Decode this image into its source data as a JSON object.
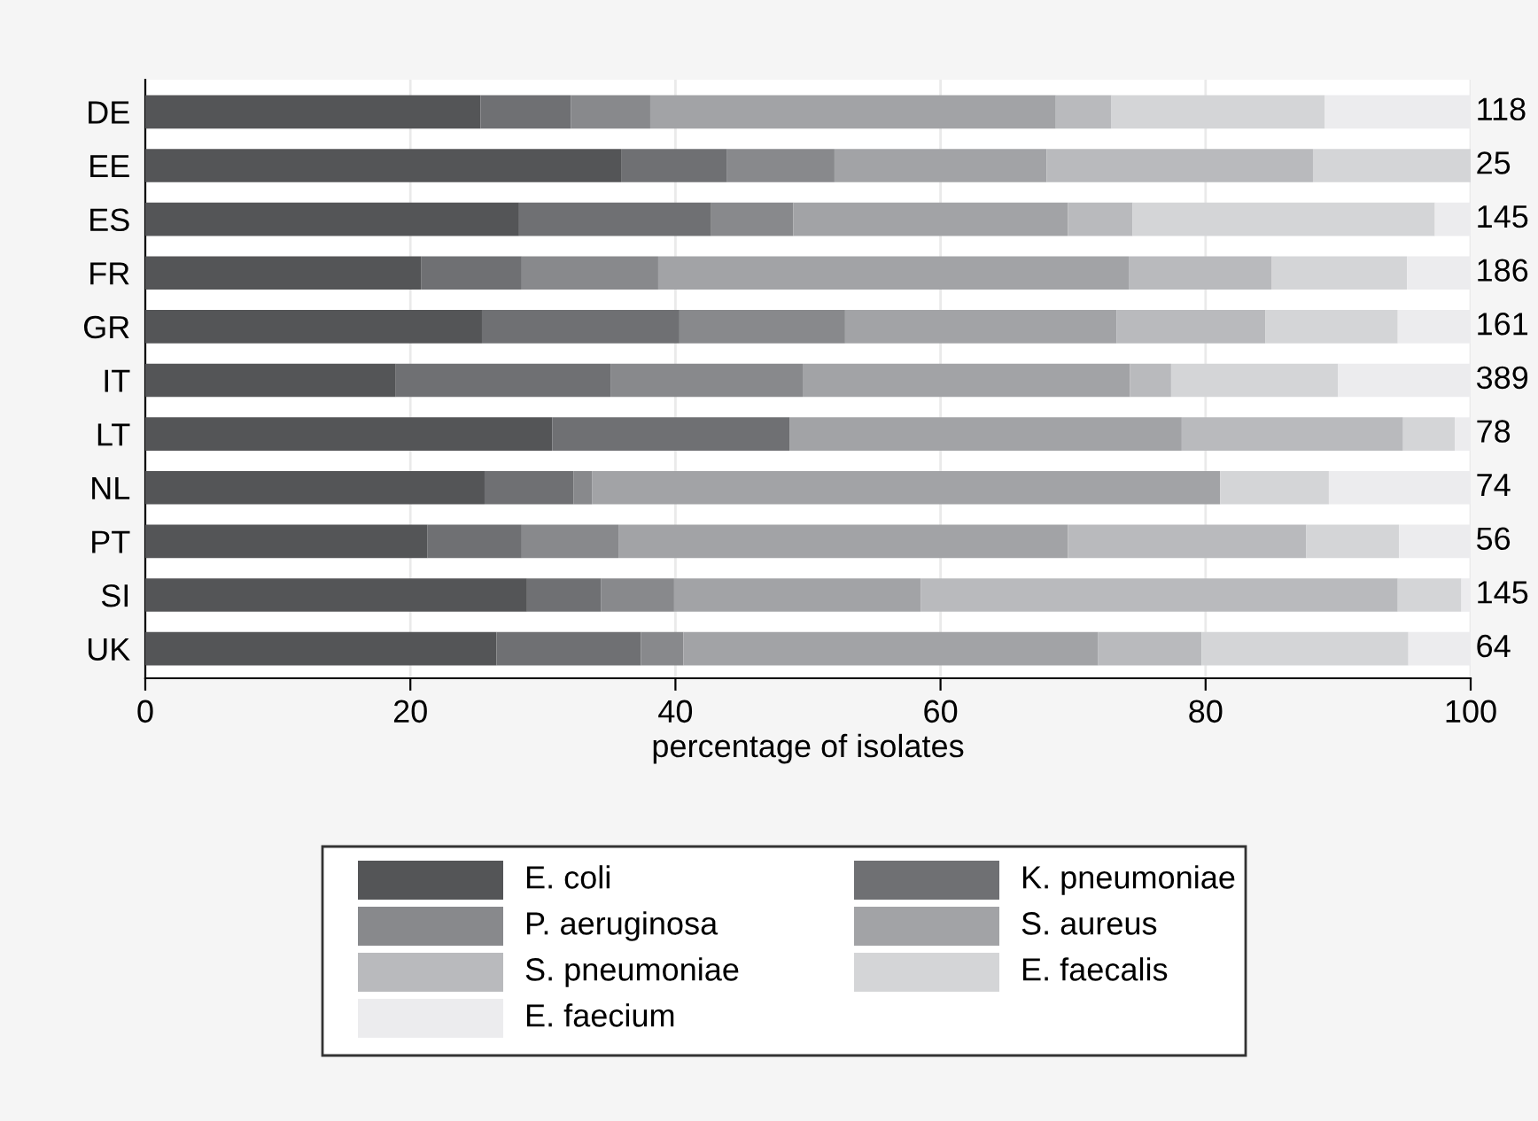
{
  "chart_data": {
    "type": "bar",
    "orientation": "horizontal",
    "stacked": true,
    "categories": [
      "DE",
      "EE",
      "ES",
      "FR",
      "GR",
      "IT",
      "LT",
      "NL",
      "PT",
      "SI",
      "UK"
    ],
    "series": [
      {
        "name": "E. coli",
        "color": "#545557",
        "values": [
          25.3,
          35.9,
          28.2,
          20.8,
          25.4,
          18.9,
          30.7,
          25.6,
          21.3,
          28.8,
          26.5
        ]
      },
      {
        "name": "K. pneumoniae",
        "color": "#6f7073",
        "values": [
          6.8,
          8.0,
          14.5,
          7.6,
          14.9,
          16.2,
          17.9,
          6.7,
          7.1,
          5.6,
          10.9
        ]
      },
      {
        "name": "P. aeruginosa",
        "color": "#88898c",
        "values": [
          6.0,
          8.1,
          6.2,
          10.3,
          12.5,
          14.5,
          0,
          1.4,
          7.3,
          5.5,
          3.2
        ]
      },
      {
        "name": "S. aureus",
        "color": "#a2a3a6",
        "values": [
          30.6,
          16.0,
          20.7,
          35.5,
          20.5,
          24.7,
          29.6,
          47.4,
          33.9,
          18.6,
          31.3
        ]
      },
      {
        "name": "S. pneumoniae",
        "color": "#b9babd",
        "values": [
          4.2,
          20.1,
          4.9,
          10.8,
          11.2,
          3.1,
          16.7,
          0,
          18.0,
          36.0,
          7.8
        ]
      },
      {
        "name": "E. faecalis",
        "color": "#d4d5d7",
        "values": [
          16.1,
          11.9,
          22.8,
          10.2,
          10.0,
          12.6,
          3.9,
          8.2,
          7.0,
          4.8,
          15.6
        ]
      },
      {
        "name": "E. faecium",
        "color": "#ececee",
        "values": [
          11.0,
          0,
          2.7,
          4.8,
          5.5,
          10.0,
          1.2,
          10.7,
          5.4,
          0.7,
          4.7
        ]
      }
    ],
    "xlabel": "percentage of isolates",
    "xlim": [
      0,
      100
    ],
    "xticks": [
      0,
      20,
      40,
      60,
      80,
      100
    ],
    "grid": "x",
    "legend": "bottom",
    "annotations": [
      "118",
      "25",
      "145",
      "186",
      "161",
      "389",
      "78",
      "74",
      "56",
      "145",
      "64"
    ]
  }
}
